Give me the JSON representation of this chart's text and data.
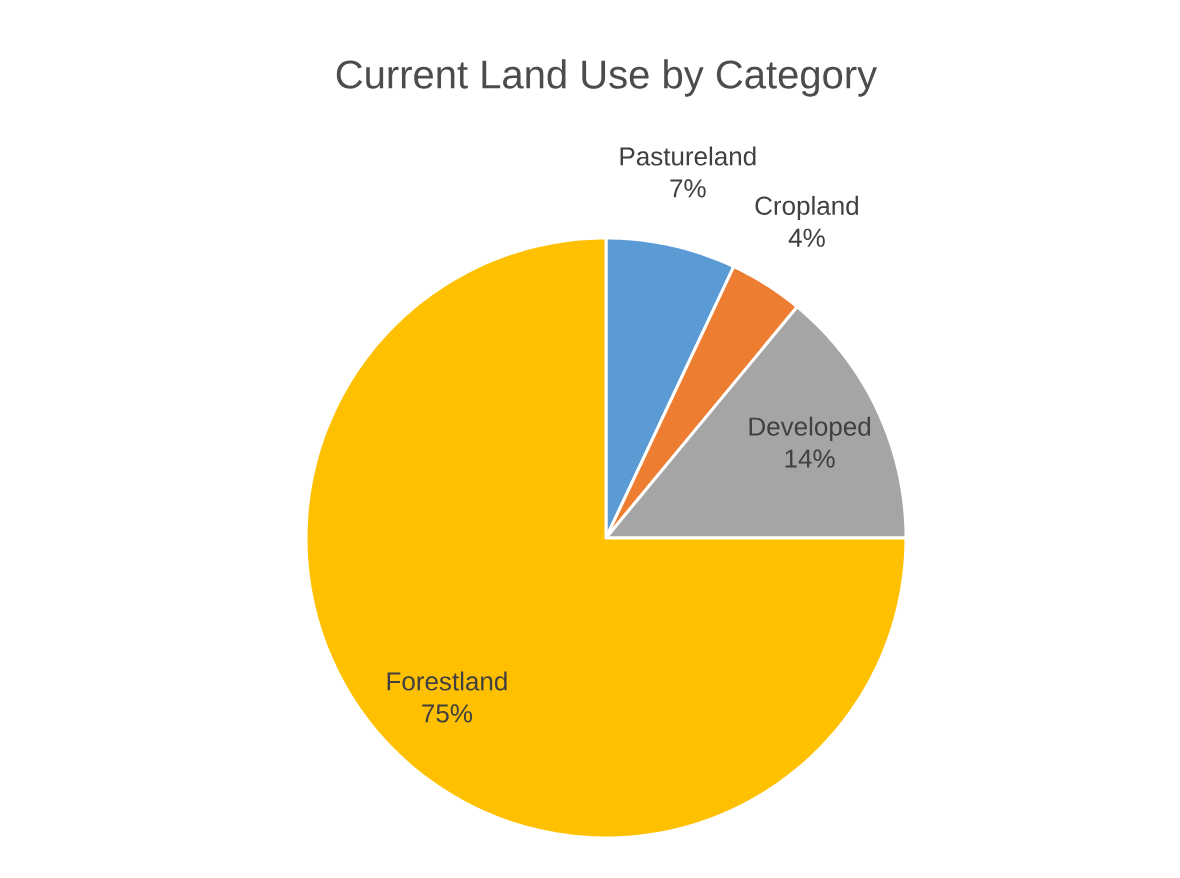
{
  "chart_data": {
    "type": "pie",
    "title": "Current Land Use by Category",
    "categories": [
      "Pastureland",
      "Cropland",
      "Developed",
      "Forestland"
    ],
    "values": [
      7,
      4,
      14,
      75
    ],
    "value_labels": [
      "7%",
      "4%",
      "14%",
      "75%"
    ],
    "colors": [
      "#5b9bd5",
      "#ed7d31",
      "#a5a5a5",
      "#ffc000"
    ]
  }
}
